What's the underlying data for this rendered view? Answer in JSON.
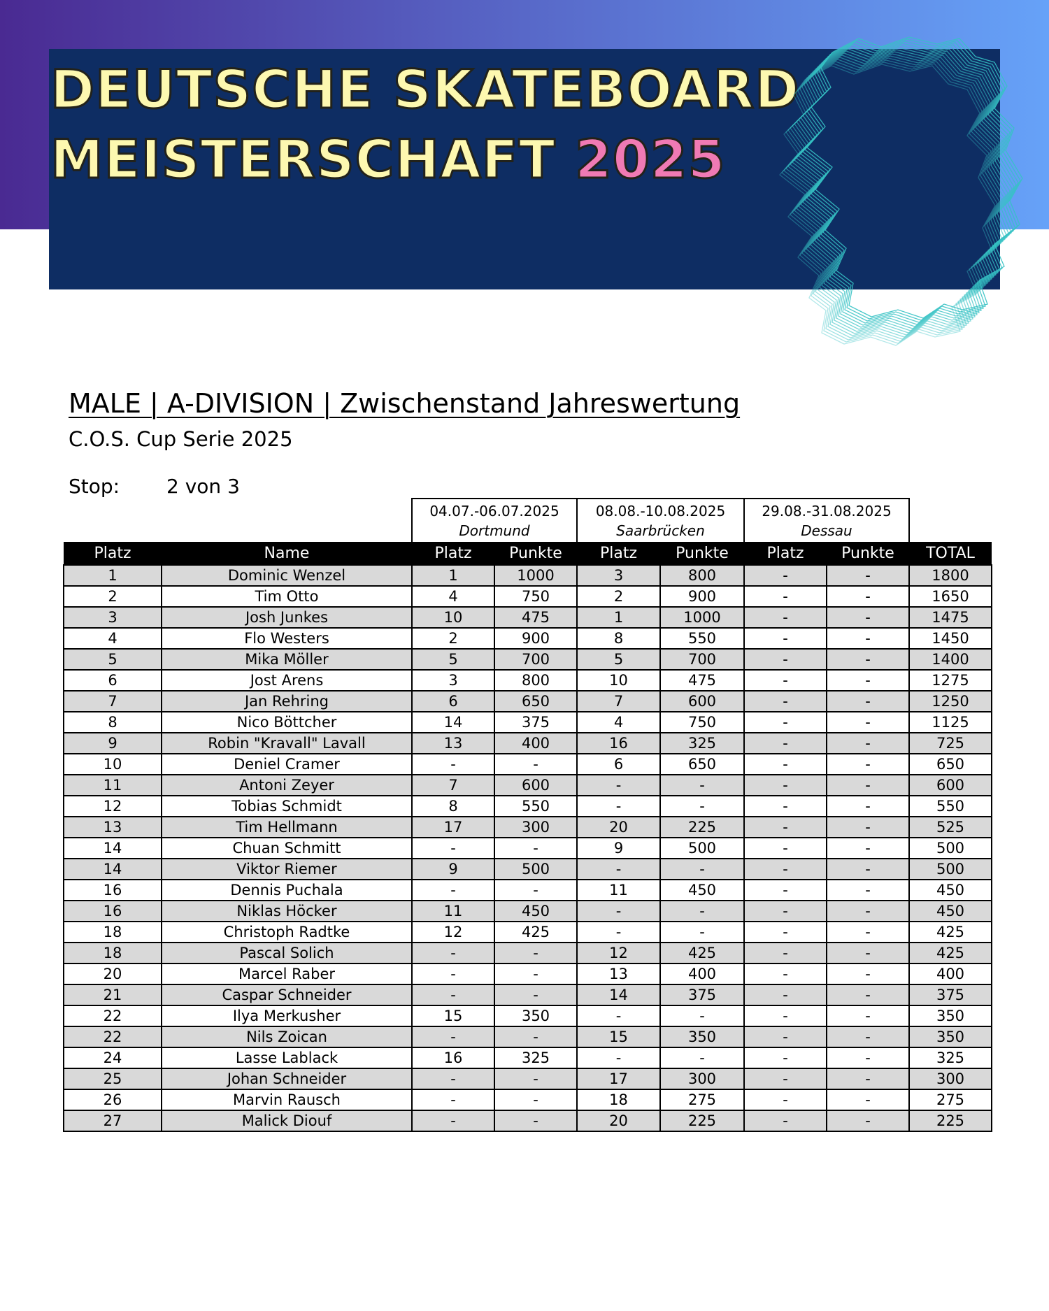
{
  "banner": {
    "title_line1": "DEUTSCHE SKATEBOARD",
    "title_line2": "MEISTERSCHAFT",
    "title_year": "2025"
  },
  "heading": "MALE | A-DIVISION | Zwischenstand Jahreswertung",
  "subheading": "C.O.S. Cup Serie 2025",
  "stop": {
    "label": "Stop:",
    "value": "2 von 3"
  },
  "events": [
    {
      "dates": "04.07.-06.07.2025",
      "city": "Dortmund"
    },
    {
      "dates": "08.08.-10.08.2025",
      "city": "Saarbrücken"
    },
    {
      "dates": "29.08.-31.08.2025",
      "city": "Dessau"
    }
  ],
  "columns": [
    "Platz",
    "Name",
    "Platz",
    "Punkte",
    "Platz",
    "Punkte",
    "Platz",
    "Punkte",
    "TOTAL"
  ],
  "rows": [
    [
      "1",
      "Dominic Wenzel",
      "1",
      "1000",
      "3",
      "800",
      "-",
      "-",
      "1800"
    ],
    [
      "2",
      "Tim Otto",
      "4",
      "750",
      "2",
      "900",
      "-",
      "-",
      "1650"
    ],
    [
      "3",
      "Josh Junkes",
      "10",
      "475",
      "1",
      "1000",
      "-",
      "-",
      "1475"
    ],
    [
      "4",
      "Flo Westers",
      "2",
      "900",
      "8",
      "550",
      "-",
      "-",
      "1450"
    ],
    [
      "5",
      "Mika Möller",
      "5",
      "700",
      "5",
      "700",
      "-",
      "-",
      "1400"
    ],
    [
      "6",
      "Jost Arens",
      "3",
      "800",
      "10",
      "475",
      "-",
      "-",
      "1275"
    ],
    [
      "7",
      "Jan Rehring",
      "6",
      "650",
      "7",
      "600",
      "-",
      "-",
      "1250"
    ],
    [
      "8",
      "Nico Böttcher",
      "14",
      "375",
      "4",
      "750",
      "-",
      "-",
      "1125"
    ],
    [
      "9",
      "Robin \"Kravall\" Lavall",
      "13",
      "400",
      "16",
      "325",
      "-",
      "-",
      "725"
    ],
    [
      "10",
      "Deniel Cramer",
      "-",
      "-",
      "6",
      "650",
      "-",
      "-",
      "650"
    ],
    [
      "11",
      "Antoni Zeyer",
      "7",
      "600",
      "-",
      "-",
      "-",
      "-",
      "600"
    ],
    [
      "12",
      "Tobias Schmidt",
      "8",
      "550",
      "-",
      "-",
      "-",
      "-",
      "550"
    ],
    [
      "13",
      "Tim Hellmann",
      "17",
      "300",
      "20",
      "225",
      "-",
      "-",
      "525"
    ],
    [
      "14",
      "Chuan Schmitt",
      "-",
      "-",
      "9",
      "500",
      "-",
      "-",
      "500"
    ],
    [
      "14",
      "Viktor Riemer",
      "9",
      "500",
      "-",
      "-",
      "-",
      "-",
      "500"
    ],
    [
      "16",
      "Dennis Puchala",
      "-",
      "-",
      "11",
      "450",
      "-",
      "-",
      "450"
    ],
    [
      "16",
      "Niklas Höcker",
      "11",
      "450",
      "-",
      "-",
      "-",
      "-",
      "450"
    ],
    [
      "18",
      "Christoph Radtke",
      "12",
      "425",
      "-",
      "-",
      "-",
      "-",
      "425"
    ],
    [
      "18",
      "Pascal Solich",
      "-",
      "-",
      "12",
      "425",
      "-",
      "-",
      "425"
    ],
    [
      "20",
      "Marcel Raber",
      "-",
      "-",
      "13",
      "400",
      "-",
      "-",
      "400"
    ],
    [
      "21",
      "Caspar Schneider",
      "-",
      "-",
      "14",
      "375",
      "-",
      "-",
      "375"
    ],
    [
      "22",
      "Ilya Merkusher",
      "15",
      "350",
      "-",
      "-",
      "-",
      "-",
      "350"
    ],
    [
      "22",
      "Nils Zoican",
      "-",
      "-",
      "15",
      "350",
      "-",
      "-",
      "350"
    ],
    [
      "24",
      "Lasse Lablack",
      "16",
      "325",
      "-",
      "-",
      "-",
      "-",
      "325"
    ],
    [
      "25",
      "Johan Schneider",
      "-",
      "-",
      "17",
      "300",
      "-",
      "-",
      "300"
    ],
    [
      "26",
      "Marvin Rausch",
      "-",
      "-",
      "18",
      "275",
      "-",
      "-",
      "275"
    ],
    [
      "27",
      "Malick Diouf",
      "-",
      "-",
      "20",
      "225",
      "-",
      "-",
      "225"
    ]
  ],
  "colors": {
    "banner_bg": "#0e2d63",
    "title_text": "#fdf8b0",
    "title_year": "#f07ab4",
    "gradient_start": "#4a2a92",
    "gradient_end": "#66a2f8",
    "map_outline": "#36c2c4",
    "row_shade": "#d9d9d9"
  },
  "icons": [
    "germany-map-outline-graphic"
  ]
}
